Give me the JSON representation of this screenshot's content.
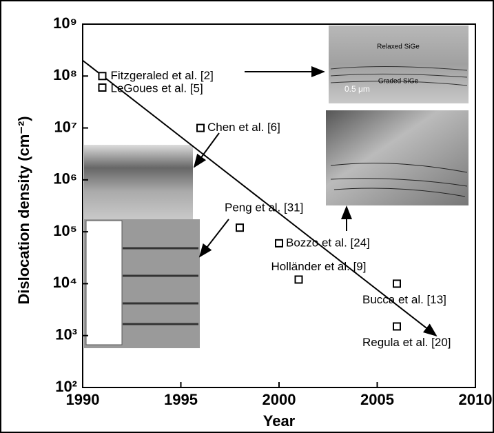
{
  "chart_data": {
    "type": "scatter",
    "x_label": "Year",
    "y_label": "Dislocation density (cm⁻²)",
    "log_y": true,
    "xlim": [
      1990,
      2010
    ],
    "xticks": [
      1990,
      1995,
      2000,
      2005,
      2010
    ],
    "ylim": [
      100,
      1000000000
    ],
    "yticks": [
      {
        "value": 100,
        "label": "10²"
      },
      {
        "value": 1000,
        "label": "10³"
      },
      {
        "value": 10000,
        "label": "10⁴"
      },
      {
        "value": 100000,
        "label": "10⁵"
      },
      {
        "value": 1000000,
        "label": "10⁶"
      },
      {
        "value": 10000000,
        "label": "10⁷"
      },
      {
        "value": 100000000,
        "label": "10⁸"
      },
      {
        "value": 1000000000,
        "label": "10⁹"
      }
    ],
    "series": [
      {
        "color": "#000000",
        "x": [
          1991,
          1991,
          1996,
          1998,
          2000,
          2001,
          2006,
          2006
        ],
        "values": [
          100000000,
          60000000,
          10000000,
          120000,
          60000,
          12000,
          10000,
          1500
        ],
        "labels": [
          "Fitzgeraled et al. [2]",
          "LeGoues et al. [5]",
          "Chen et al. [6]",
          "Peng et al. [31]",
          "Bozzo et al. [24]",
          "Holländer et al. [9]",
          "Bucca et al. [13]",
          "Regula et al. [20]"
        ]
      }
    ],
    "trend": {
      "x": [
        1990,
        2008
      ],
      "values": [
        200000000,
        1000
      ]
    },
    "image_labels": [
      "Relaxed SiGe",
      "Graded SiGe",
      "0.5 μm"
    ]
  }
}
